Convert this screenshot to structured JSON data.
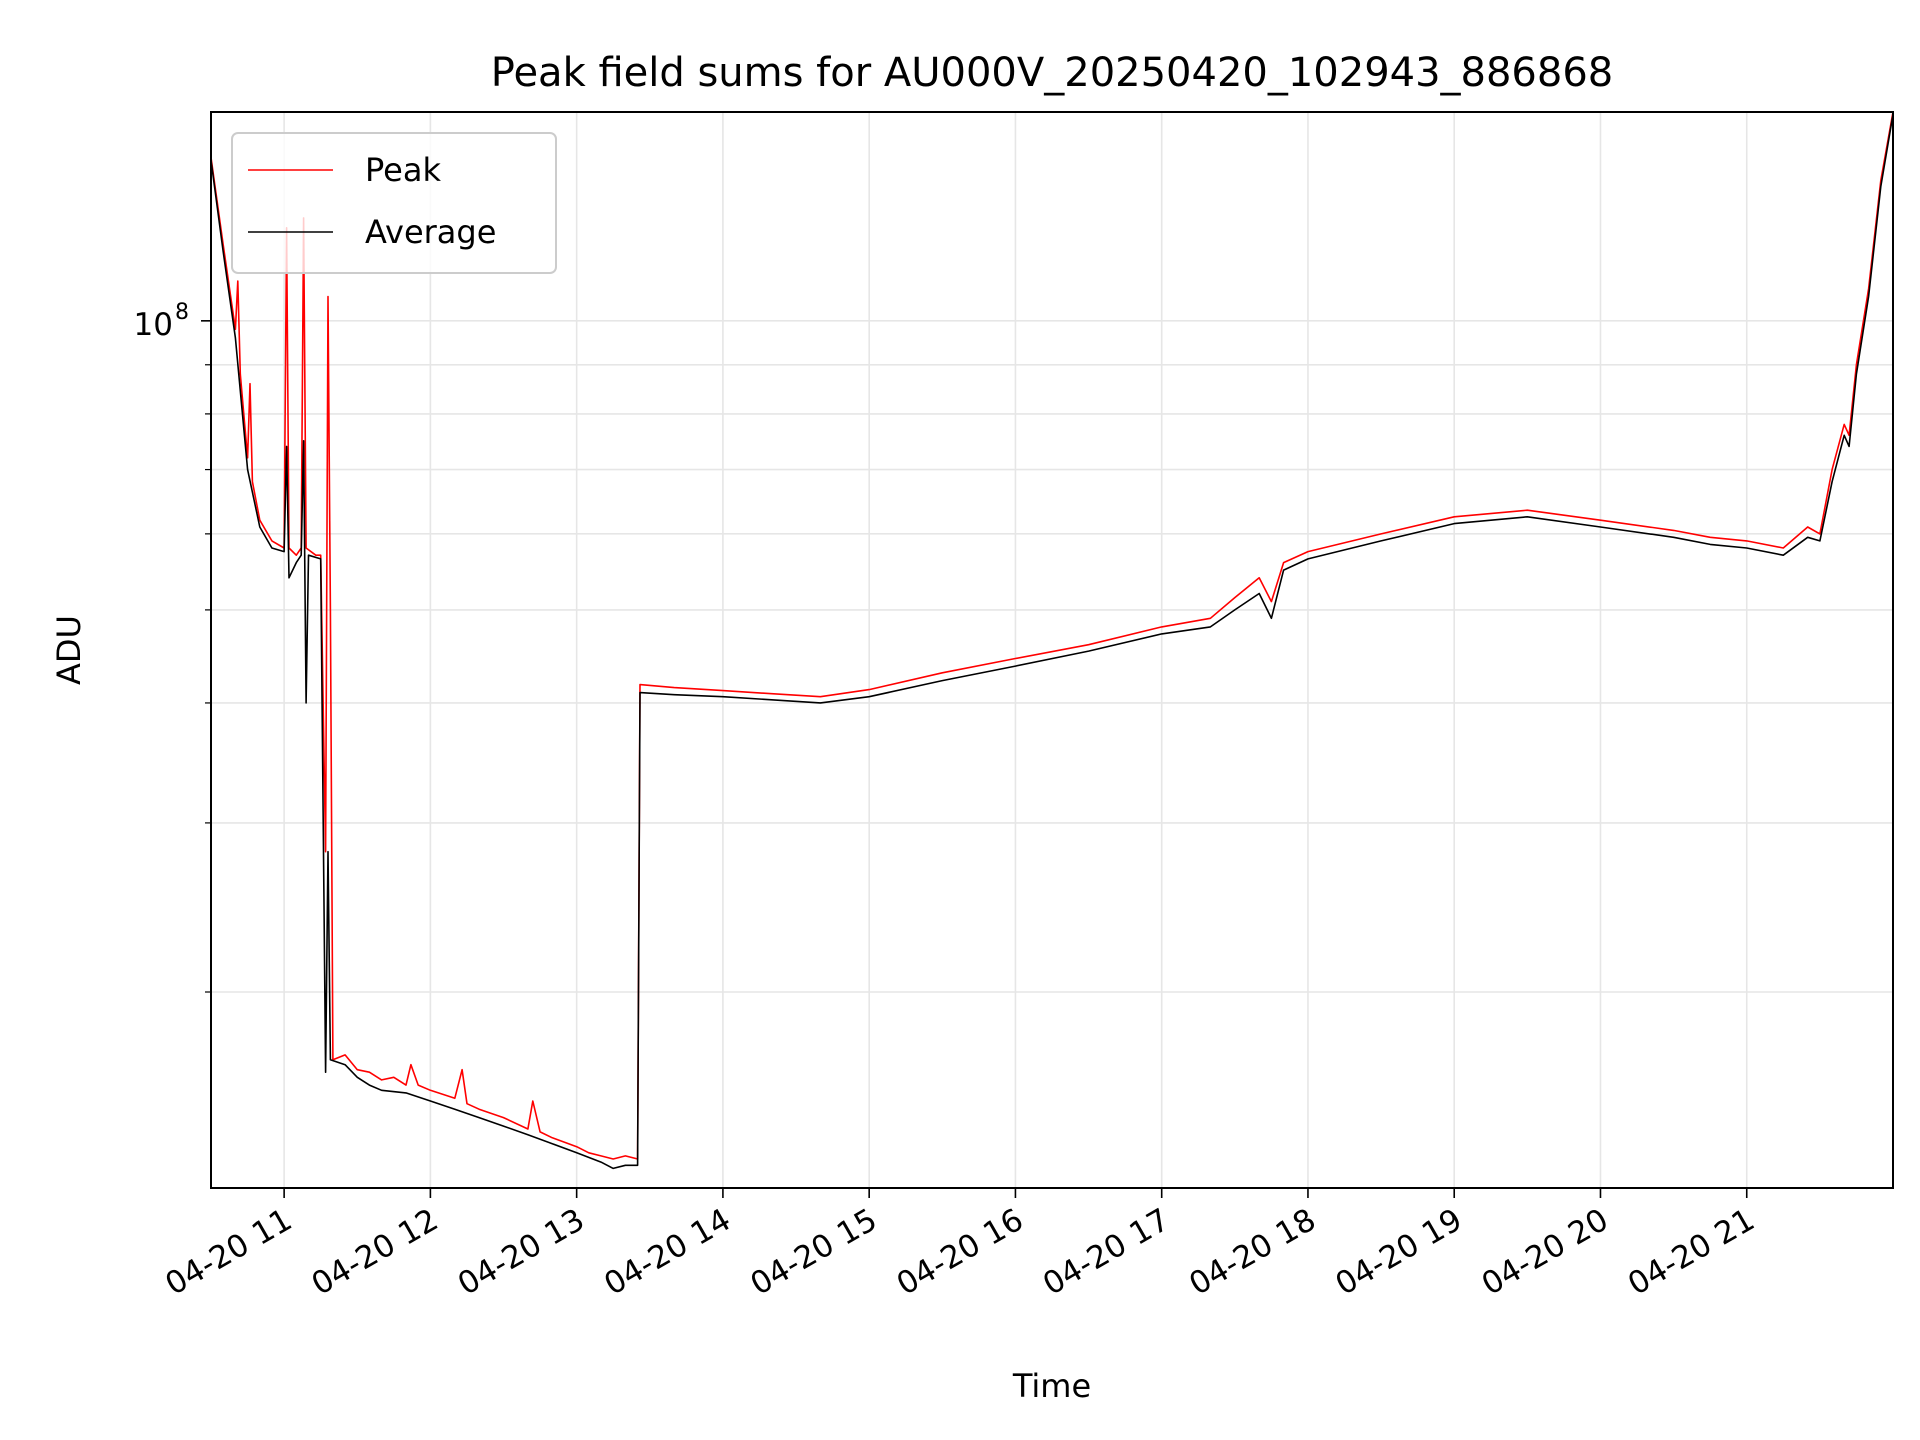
{
  "chart_data": {
    "type": "line",
    "title": "Peak field sums for AU000V_20250420_102943_886868",
    "xlabel": "Time",
    "ylabel": "ADU",
    "x_range": [
      "2025-04-20T10:30",
      "2025-04-20T22:00"
    ],
    "y_range": [
      12500000,
      165000000
    ],
    "y_scale": "log",
    "grid": true,
    "legend_position": "top-left",
    "x_ticks": [
      {
        "t": "2025-04-20T11:00",
        "label": "04-20 11"
      },
      {
        "t": "2025-04-20T12:00",
        "label": "04-20 12"
      },
      {
        "t": "2025-04-20T13:00",
        "label": "04-20 13"
      },
      {
        "t": "2025-04-20T14:00",
        "label": "04-20 14"
      },
      {
        "t": "2025-04-20T15:00",
        "label": "04-20 15"
      },
      {
        "t": "2025-04-20T16:00",
        "label": "04-20 16"
      },
      {
        "t": "2025-04-20T17:00",
        "label": "04-20 17"
      },
      {
        "t": "2025-04-20T18:00",
        "label": "04-20 18"
      },
      {
        "t": "2025-04-20T19:00",
        "label": "04-20 19"
      },
      {
        "t": "2025-04-20T20:00",
        "label": "04-20 20"
      },
      {
        "t": "2025-04-20T21:00",
        "label": "04-20 21"
      }
    ],
    "y_major_ticks": [
      {
        "value": 100000000,
        "label": "10",
        "exponent": "8"
      }
    ],
    "y_minor_ticks": [
      20000000,
      30000000,
      40000000,
      50000000,
      60000000,
      70000000,
      80000000,
      90000000
    ],
    "series": [
      {
        "name": "Peak",
        "color": "#ff0000",
        "points": [
          [
            "2025-04-20T10:30",
            148000000
          ],
          [
            "2025-04-20T10:35",
            120000000
          ],
          [
            "2025-04-20T10:40",
            98000000
          ],
          [
            "2025-04-20T10:41",
            110000000
          ],
          [
            "2025-04-20T10:42",
            88000000
          ],
          [
            "2025-04-20T10:45",
            72000000
          ],
          [
            "2025-04-20T10:46",
            86000000
          ],
          [
            "2025-04-20T10:47",
            68000000
          ],
          [
            "2025-04-20T10:50",
            62000000
          ],
          [
            "2025-04-20T10:55",
            59000000
          ],
          [
            "2025-04-20T11:00",
            58000000
          ],
          [
            "2025-04-20T11:01",
            125000000
          ],
          [
            "2025-04-20T11:02",
            58000000
          ],
          [
            "2025-04-20T11:05",
            57000000
          ],
          [
            "2025-04-20T11:07",
            58000000
          ],
          [
            "2025-04-20T11:08",
            128000000
          ],
          [
            "2025-04-20T11:09",
            58000000
          ],
          [
            "2025-04-20T11:13",
            57000000
          ],
          [
            "2025-04-20T11:15",
            57000000
          ],
          [
            "2025-04-20T11:17",
            28000000
          ],
          [
            "2025-04-20T11:18",
            106000000
          ],
          [
            "2025-04-20T11:19",
            50000000
          ],
          [
            "2025-04-20T11:20",
            17000000
          ],
          [
            "2025-04-20T11:25",
            17200000
          ],
          [
            "2025-04-20T11:30",
            16600000
          ],
          [
            "2025-04-20T11:35",
            16500000
          ],
          [
            "2025-04-20T11:40",
            16200000
          ],
          [
            "2025-04-20T11:45",
            16300000
          ],
          [
            "2025-04-20T11:50",
            16000000
          ],
          [
            "2025-04-20T11:52",
            16800000
          ],
          [
            "2025-04-20T11:55",
            16000000
          ],
          [
            "2025-04-20T12:00",
            15800000
          ],
          [
            "2025-04-20T12:10",
            15500000
          ],
          [
            "2025-04-20T12:13",
            16600000
          ],
          [
            "2025-04-20T12:15",
            15300000
          ],
          [
            "2025-04-20T12:20",
            15100000
          ],
          [
            "2025-04-20T12:30",
            14800000
          ],
          [
            "2025-04-20T12:40",
            14400000
          ],
          [
            "2025-04-20T12:42",
            15400000
          ],
          [
            "2025-04-20T12:45",
            14300000
          ],
          [
            "2025-04-20T12:50",
            14100000
          ],
          [
            "2025-04-20T13:00",
            13800000
          ],
          [
            "2025-04-20T13:05",
            13600000
          ],
          [
            "2025-04-20T13:10",
            13500000
          ],
          [
            "2025-04-20T13:15",
            13400000
          ],
          [
            "2025-04-20T13:20",
            13500000
          ],
          [
            "2025-04-20T13:25",
            13400000
          ],
          [
            "2025-04-20T13:26",
            41800000
          ],
          [
            "2025-04-20T13:40",
            41500000
          ],
          [
            "2025-04-20T14:00",
            41200000
          ],
          [
            "2025-04-20T14:20",
            40900000
          ],
          [
            "2025-04-20T14:40",
            40600000
          ],
          [
            "2025-04-20T15:00",
            41300000
          ],
          [
            "2025-04-20T15:30",
            43000000
          ],
          [
            "2025-04-20T16:00",
            44500000
          ],
          [
            "2025-04-20T16:30",
            46000000
          ],
          [
            "2025-04-20T17:00",
            48000000
          ],
          [
            "2025-04-20T17:20",
            49000000
          ],
          [
            "2025-04-20T17:30",
            51500000
          ],
          [
            "2025-04-20T17:40",
            54000000
          ],
          [
            "2025-04-20T17:45",
            51000000
          ],
          [
            "2025-04-20T17:50",
            56000000
          ],
          [
            "2025-04-20T18:00",
            57500000
          ],
          [
            "2025-04-20T18:30",
            60000000
          ],
          [
            "2025-04-20T19:00",
            62500000
          ],
          [
            "2025-04-20T19:30",
            63500000
          ],
          [
            "2025-04-20T20:00",
            62000000
          ],
          [
            "2025-04-20T20:30",
            60500000
          ],
          [
            "2025-04-20T20:45",
            59500000
          ],
          [
            "2025-04-20T21:00",
            59000000
          ],
          [
            "2025-04-20T21:15",
            58000000
          ],
          [
            "2025-04-20T21:25",
            61000000
          ],
          [
            "2025-04-20T21:30",
            60000000
          ],
          [
            "2025-04-20T21:35",
            70000000
          ],
          [
            "2025-04-20T21:40",
            78000000
          ],
          [
            "2025-04-20T21:42",
            76000000
          ],
          [
            "2025-04-20T21:45",
            90000000
          ],
          [
            "2025-04-20T21:50",
            108000000
          ],
          [
            "2025-04-20T21:55",
            140000000
          ],
          [
            "2025-04-20T22:00",
            165000000
          ]
        ]
      },
      {
        "name": "Average",
        "color": "#000000",
        "points": [
          [
            "2025-04-20T10:30",
            147000000
          ],
          [
            "2025-04-20T10:35",
            118000000
          ],
          [
            "2025-04-20T10:40",
            96000000
          ],
          [
            "2025-04-20T10:45",
            70000000
          ],
          [
            "2025-04-20T10:50",
            61000000
          ],
          [
            "2025-04-20T10:55",
            58000000
          ],
          [
            "2025-04-20T11:00",
            57500000
          ],
          [
            "2025-04-20T11:01",
            74000000
          ],
          [
            "2025-04-20T11:02",
            54000000
          ],
          [
            "2025-04-20T11:05",
            56000000
          ],
          [
            "2025-04-20T11:07",
            57000000
          ],
          [
            "2025-04-20T11:08",
            75000000
          ],
          [
            "2025-04-20T11:09",
            40000000
          ],
          [
            "2025-04-20T11:10",
            57000000
          ],
          [
            "2025-04-20T11:15",
            56500000
          ],
          [
            "2025-04-20T11:17",
            16500000
          ],
          [
            "2025-04-20T11:18",
            28000000
          ],
          [
            "2025-04-20T11:19",
            17000000
          ],
          [
            "2025-04-20T11:25",
            16800000
          ],
          [
            "2025-04-20T11:30",
            16300000
          ],
          [
            "2025-04-20T11:35",
            16000000
          ],
          [
            "2025-04-20T11:40",
            15800000
          ],
          [
            "2025-04-20T11:50",
            15700000
          ],
          [
            "2025-04-20T12:00",
            15400000
          ],
          [
            "2025-04-20T12:10",
            15100000
          ],
          [
            "2025-04-20T12:20",
            14800000
          ],
          [
            "2025-04-20T12:30",
            14500000
          ],
          [
            "2025-04-20T12:40",
            14200000
          ],
          [
            "2025-04-20T12:50",
            13900000
          ],
          [
            "2025-04-20T13:00",
            13600000
          ],
          [
            "2025-04-20T13:10",
            13300000
          ],
          [
            "2025-04-20T13:15",
            13100000
          ],
          [
            "2025-04-20T13:20",
            13200000
          ],
          [
            "2025-04-20T13:25",
            13200000
          ],
          [
            "2025-04-20T13:26",
            41000000
          ],
          [
            "2025-04-20T13:40",
            40800000
          ],
          [
            "2025-04-20T14:00",
            40600000
          ],
          [
            "2025-04-20T14:20",
            40300000
          ],
          [
            "2025-04-20T14:40",
            40000000
          ],
          [
            "2025-04-20T15:00",
            40600000
          ],
          [
            "2025-04-20T15:30",
            42200000
          ],
          [
            "2025-04-20T16:00",
            43700000
          ],
          [
            "2025-04-20T16:30",
            45300000
          ],
          [
            "2025-04-20T17:00",
            47200000
          ],
          [
            "2025-04-20T17:20",
            48000000
          ],
          [
            "2025-04-20T17:30",
            50000000
          ],
          [
            "2025-04-20T17:40",
            52000000
          ],
          [
            "2025-04-20T17:45",
            49000000
          ],
          [
            "2025-04-20T17:50",
            55000000
          ],
          [
            "2025-04-20T18:00",
            56500000
          ],
          [
            "2025-04-20T18:30",
            59000000
          ],
          [
            "2025-04-20T19:00",
            61500000
          ],
          [
            "2025-04-20T19:30",
            62500000
          ],
          [
            "2025-04-20T20:00",
            61000000
          ],
          [
            "2025-04-20T20:30",
            59500000
          ],
          [
            "2025-04-20T20:45",
            58500000
          ],
          [
            "2025-04-20T21:00",
            58000000
          ],
          [
            "2025-04-20T21:15",
            57000000
          ],
          [
            "2025-04-20T21:25",
            59500000
          ],
          [
            "2025-04-20T21:30",
            59000000
          ],
          [
            "2025-04-20T21:35",
            68000000
          ],
          [
            "2025-04-20T21:40",
            76000000
          ],
          [
            "2025-04-20T21:42",
            74000000
          ],
          [
            "2025-04-20T21:45",
            88000000
          ],
          [
            "2025-04-20T21:50",
            106000000
          ],
          [
            "2025-04-20T21:55",
            138000000
          ],
          [
            "2025-04-20T22:00",
            164000000
          ]
        ]
      }
    ]
  }
}
